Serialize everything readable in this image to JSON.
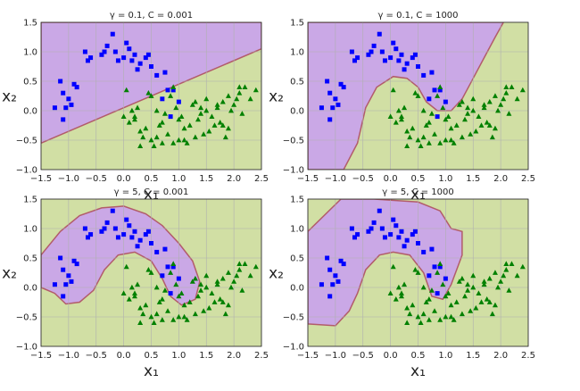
{
  "chart_data": [
    {
      "type": "scatter",
      "title": "γ = 0.1, C = 0.001",
      "xlabel": "x₁",
      "ylabel": "x₂",
      "xlim": [
        -1.5,
        2.5
      ],
      "ylim": [
        -1.0,
        1.5
      ],
      "xticks": [
        "−1.5",
        "−1.0",
        "−0.5",
        "0.0",
        "0.5",
        "1.0",
        "1.5",
        "2.0",
        "2.5"
      ],
      "yticks": [
        "−1.0",
        "−0.5",
        "0.0",
        "0.5",
        "1.0",
        "1.5"
      ],
      "grid": true,
      "decision_boundary": "linear",
      "regions": {
        "class0": "purple",
        "class1": "green"
      },
      "series": [
        {
          "marker": "square",
          "color": "#0000ff",
          "x": [
            -1.15,
            -1.1,
            -1.0,
            -0.9,
            -0.7,
            -0.6,
            -0.4,
            -0.3,
            -0.2,
            -0.1,
            0.0,
            0.1,
            0.2,
            0.3,
            0.4,
            0.5,
            0.6,
            0.75,
            0.8,
            0.9,
            -0.65,
            -0.35,
            0.05,
            0.25,
            -1.05,
            -0.95,
            -0.85,
            -1.25,
            0.45,
            0.15,
            -0.15,
            0.7,
            1.0,
            -1.1,
            0.85
          ],
          "y": [
            0.5,
            0.3,
            0.2,
            0.45,
            1.0,
            0.9,
            0.95,
            1.1,
            1.3,
            0.85,
            0.9,
            1.05,
            0.95,
            0.8,
            0.9,
            0.75,
            0.6,
            0.65,
            0.35,
            0.35,
            0.85,
            1.0,
            1.15,
            0.7,
            0.05,
            0.1,
            0.4,
            0.05,
            0.95,
            0.85,
            1.0,
            0.2,
            0.15,
            -0.15,
            -0.1
          ]
        },
        {
          "marker": "triangle",
          "color": "#008000",
          "x": [
            0.0,
            0.1,
            0.2,
            0.3,
            0.4,
            0.5,
            0.6,
            0.7,
            0.8,
            0.9,
            1.0,
            1.1,
            1.2,
            1.3,
            1.4,
            1.5,
            1.6,
            1.7,
            1.8,
            1.9,
            2.0,
            2.1,
            2.2,
            2.3,
            2.4,
            0.15,
            0.35,
            0.55,
            0.75,
            0.95,
            1.15,
            1.35,
            1.55,
            1.75,
            1.95,
            2.15,
            0.25,
            0.65,
            1.05,
            1.45,
            1.85,
            0.45,
            0.85,
            1.25,
            1.65,
            2.05,
            0.05,
            0.5,
            0.9,
            1.3,
            1.7,
            2.1,
            1.5,
            1.9,
            0.6,
            1.0,
            1.4,
            0.3,
            0.7,
            1.1,
            0.2,
            1.8
          ],
          "y": [
            -0.1,
            -0.2,
            -0.15,
            -0.35,
            -0.3,
            -0.5,
            -0.45,
            -0.2,
            -0.4,
            -0.55,
            -0.5,
            -0.3,
            -0.25,
            -0.45,
            -0.05,
            0.0,
            -0.1,
            0.05,
            0.15,
            0.25,
            0.1,
            0.3,
            0.4,
            0.2,
            0.35,
            0.0,
            -0.45,
            -0.6,
            -0.05,
            0.05,
            -0.55,
            -0.15,
            -0.35,
            -0.2,
            0.0,
            -0.05,
            0.05,
            -0.25,
            -0.1,
            -0.4,
            -0.45,
            0.3,
            0.25,
            0.1,
            -0.25,
            0.2,
            0.35,
            0.25,
            0.4,
            0.15,
            0.1,
            0.4,
            0.2,
            -0.3,
            0.0,
            -0.15,
            0.05,
            -0.6,
            -0.55,
            -0.5,
            -0.1,
            -0.25
          ]
        }
      ]
    },
    {
      "type": "scatter",
      "title": "γ = 0.1, C = 1000",
      "xlabel": "x₁",
      "ylabel": "x₂",
      "xlim": [
        -1.5,
        2.5
      ],
      "ylim": [
        -1.0,
        1.5
      ],
      "xticks": [
        "−1.5",
        "−1.0",
        "−0.5",
        "0.0",
        "0.5",
        "1.0",
        "1.5",
        "2.0",
        "2.5"
      ],
      "yticks": [
        "−1.0",
        "−0.5",
        "0.0",
        "0.5",
        "1.0",
        "1.5"
      ],
      "grid": true,
      "decision_boundary": "smooth curve",
      "regions": {
        "class0": "purple",
        "class1": "green"
      }
    },
    {
      "type": "scatter",
      "title": "γ = 5, C = 0.001",
      "xlabel": "x₁",
      "ylabel": "x₂",
      "xlim": [
        -1.5,
        2.5
      ],
      "ylim": [
        -1.0,
        1.5
      ],
      "xticks": [
        "−1.5",
        "−1.0",
        "−0.5",
        "0.0",
        "0.5",
        "1.0",
        "1.5",
        "2.0",
        "2.5"
      ],
      "yticks": [
        "−1.0",
        "−0.5",
        "0.0",
        "0.5",
        "1.0",
        "1.5"
      ],
      "grid": true,
      "decision_boundary": "crescent band",
      "regions": {
        "class0": "purple",
        "class1": "green"
      }
    },
    {
      "type": "scatter",
      "title": "γ = 5, C = 1000",
      "xlabel": "x₁",
      "ylabel": "x₂",
      "xlim": [
        -1.5,
        2.5
      ],
      "ylim": [
        -1.0,
        1.5
      ],
      "xticks": [
        "−1.5",
        "−1.0",
        "−0.5",
        "0.0",
        "0.5",
        "1.0",
        "1.5",
        "2.0",
        "2.5"
      ],
      "yticks": [
        "−1.0",
        "−0.5",
        "0.0",
        "0.5",
        "1.0",
        "1.5"
      ],
      "grid": true,
      "decision_boundary": "tight crescent",
      "regions": {
        "class0": "purple",
        "class1": "green"
      }
    }
  ],
  "colors": {
    "purple_region": "#caa8e6",
    "green_region": "#d1dfa4",
    "blue_marker": "#0000ff",
    "green_marker": "#008000",
    "boundary": "#b25c6a"
  }
}
